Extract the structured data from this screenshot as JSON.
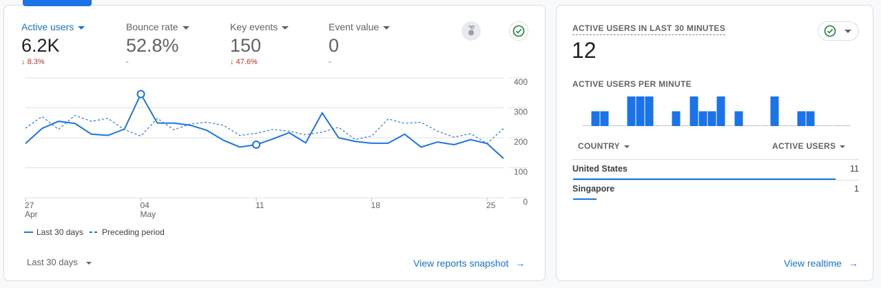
{
  "metrics": [
    {
      "label": "Active users",
      "value": "6.2K",
      "delta": "8.3%",
      "delta_dir": "down",
      "active": true
    },
    {
      "label": "Bounce rate",
      "value": "52.8%",
      "delta": "-",
      "delta_dir": "none",
      "active": false
    },
    {
      "label": "Key events",
      "value": "150",
      "delta": "47.6%",
      "delta_dir": "down",
      "active": false
    },
    {
      "label": "Event value",
      "value": "0",
      "delta": "-",
      "delta_dir": "none",
      "active": false
    }
  ],
  "legend": {
    "current": "Last 30 days",
    "previous": "Preceding period"
  },
  "date_range": "Last 30 days",
  "view_snapshot": "View reports snapshot",
  "chart_data": {
    "type": "line",
    "x_ticks": [
      {
        "day": "27",
        "month": "Apr",
        "index": 0
      },
      {
        "day": "04",
        "month": "May",
        "index": 7
      },
      {
        "day": "11",
        "month": "",
        "index": 14
      },
      {
        "day": "18",
        "month": "",
        "index": 21
      },
      {
        "day": "25",
        "month": "",
        "index": 28
      }
    ],
    "y_ticks": [
      "400",
      "300",
      "200",
      "100",
      "0"
    ],
    "ylim": [
      0,
      400
    ],
    "series": [
      {
        "name": "Last 30 days",
        "style": "solid",
        "values": [
          181,
          231,
          255,
          248,
          212,
          208,
          229,
          346,
          249,
          249,
          242,
          225,
          192,
          169,
          177,
          196,
          217,
          183,
          283,
          200,
          188,
          182,
          182,
          212,
          169,
          186,
          177,
          194,
          181,
          131
        ],
        "markers": [
          7,
          14
        ]
      },
      {
        "name": "Preceding period",
        "style": "dashed",
        "values": [
          232,
          271,
          228,
          275,
          255,
          265,
          227,
          206,
          265,
          227,
          246,
          252,
          242,
          208,
          215,
          228,
          222,
          210,
          219,
          235,
          194,
          206,
          263,
          248,
          252,
          222,
          202,
          214,
          181,
          231
        ]
      }
    ],
    "color": "#1a73e8"
  },
  "realtime": {
    "title": "ACTIVE USERS IN LAST 30 MINUTES",
    "value": "12",
    "per_minute_title": "ACTIVE USERS PER MINUTE",
    "per_minute": [
      0,
      1,
      1,
      0,
      0,
      2,
      2,
      2,
      0,
      0,
      1,
      0,
      2,
      1,
      1,
      2,
      0,
      1,
      0,
      0,
      0,
      2,
      0,
      0,
      1,
      1,
      0,
      0,
      0,
      0
    ],
    "col_country": "COUNTRY",
    "col_users": "ACTIVE USERS",
    "rows": [
      {
        "country": "United States",
        "users": "11",
        "share": 0.917
      },
      {
        "country": "Singapore",
        "users": "1",
        "share": 0.083
      }
    ],
    "view_realtime": "View realtime"
  }
}
